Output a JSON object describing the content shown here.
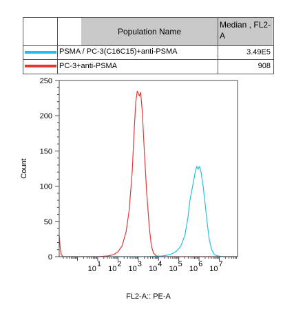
{
  "legend": {
    "header_name": "Population Name",
    "header_median": "Median , FL2-A",
    "rows": [
      {
        "name": "PSMA / PC-3(C16C15)+anti-PSMA",
        "median": "3.49E5",
        "color": "#22bfea"
      },
      {
        "name": "PC-3+anti-PSMA",
        "median": "908",
        "color": "#e53535"
      }
    ]
  },
  "chart_data": {
    "type": "line",
    "title": "",
    "xlabel": "FL2-A:: PE-A",
    "ylabel": "Count",
    "x_scale": "log",
    "xlim": [
      -0.9,
      7.9
    ],
    "ylim": [
      0,
      250
    ],
    "y_ticks": [
      0,
      50,
      100,
      150,
      200,
      250
    ],
    "x_ticks": [
      {
        "base": "10",
        "exp": "1",
        "value": 1
      },
      {
        "base": "10",
        "exp": "2",
        "value": 2
      },
      {
        "base": "10",
        "exp": "3",
        "value": 3
      },
      {
        "base": "10",
        "exp": "4",
        "value": 4
      },
      {
        "base": "10",
        "exp": "5",
        "value": 5
      },
      {
        "base": "10",
        "exp": "6",
        "value": 6
      },
      {
        "base": "10",
        "exp": "7",
        "value": 7
      }
    ],
    "series": [
      {
        "name": "PC-3+anti-PSMA",
        "color": "#e53535",
        "points": [
          [
            -0.9,
            30
          ],
          [
            -0.85,
            12
          ],
          [
            -0.8,
            3
          ],
          [
            -0.7,
            0
          ],
          [
            0,
            0
          ],
          [
            1.0,
            0
          ],
          [
            1.5,
            1
          ],
          [
            1.8,
            3
          ],
          [
            2.0,
            7
          ],
          [
            2.2,
            15
          ],
          [
            2.4,
            35
          ],
          [
            2.55,
            65
          ],
          [
            2.7,
            120
          ],
          [
            2.8,
            180
          ],
          [
            2.88,
            220
          ],
          [
            2.95,
            235
          ],
          [
            3.0,
            232
          ],
          [
            3.05,
            228
          ],
          [
            3.12,
            233
          ],
          [
            3.2,
            205
          ],
          [
            3.3,
            150
          ],
          [
            3.42,
            90
          ],
          [
            3.55,
            40
          ],
          [
            3.65,
            15
          ],
          [
            3.75,
            5
          ],
          [
            3.9,
            1
          ],
          [
            4.1,
            0
          ],
          [
            4.5,
            0
          ],
          [
            5.0,
            0
          ],
          [
            6.0,
            0
          ],
          [
            7.9,
            0
          ]
        ]
      },
      {
        "name": "PSMA / PC-3(C16C15)+anti-PSMA",
        "color": "#22bfea",
        "points": [
          [
            -0.9,
            0
          ],
          [
            3.5,
            0
          ],
          [
            4.2,
            1
          ],
          [
            4.6,
            3
          ],
          [
            4.9,
            8
          ],
          [
            5.1,
            15
          ],
          [
            5.3,
            30
          ],
          [
            5.45,
            55
          ],
          [
            5.55,
            80
          ],
          [
            5.65,
            95
          ],
          [
            5.75,
            110
          ],
          [
            5.82,
            122
          ],
          [
            5.9,
            128
          ],
          [
            5.95,
            124
          ],
          [
            6.02,
            128
          ],
          [
            6.1,
            120
          ],
          [
            6.2,
            100
          ],
          [
            6.3,
            75
          ],
          [
            6.4,
            48
          ],
          [
            6.5,
            25
          ],
          [
            6.62,
            10
          ],
          [
            6.75,
            3
          ],
          [
            6.9,
            1
          ],
          [
            7.2,
            0
          ],
          [
            7.9,
            0
          ]
        ]
      }
    ]
  }
}
